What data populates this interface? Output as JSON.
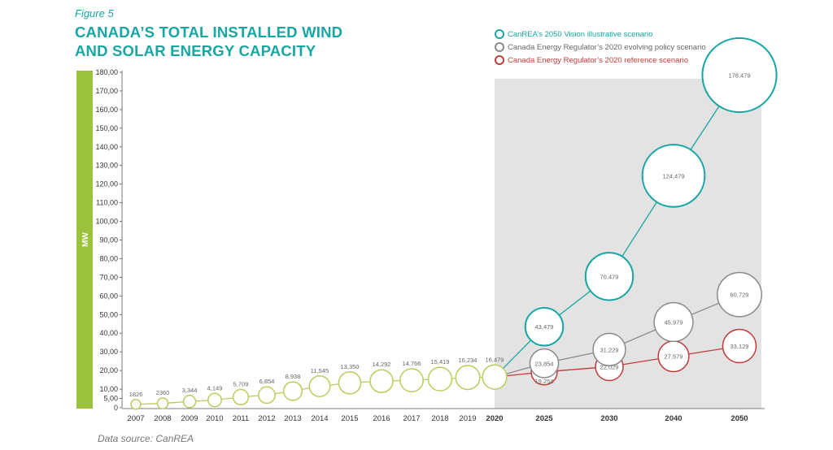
{
  "figure_label": "Figure 5",
  "title_line1": "CANADA’S TOTAL INSTALLED WIND",
  "title_line2": "AND SOLAR ENERGY CAPACITY",
  "source": "Data source: CanREA",
  "legend": [
    {
      "label": "CanREA’s 2050 Vision illustrative scenario",
      "color": "#17a6a3",
      "text_color": "#17a6a3"
    },
    {
      "label": "Canada Energy Regulator’s 2020 evolving policy scenario",
      "color": "#8a8a8a",
      "text_color": "#666666"
    },
    {
      "label": "Canada Energy Regulator’s 2020 reference scenario",
      "color": "#c23a3a",
      "text_color": "#c23a3a"
    }
  ],
  "colors": {
    "historical": "#b5cf5b",
    "vision": "#17a6a3",
    "evolving": "#8a8a8a",
    "reference": "#c23a3a",
    "axis_bar": "#9cc33b",
    "forecast_bg": "#e3e3e3"
  },
  "chart_data": {
    "type": "scatter",
    "ylabel": "MW",
    "ylim": [
      0,
      180
    ],
    "yticks": [
      "0",
      "5,00",
      "10,00",
      "20,00",
      "30,00",
      "40,00",
      "50,00",
      "60,00",
      "70,00",
      "80,00",
      "90,00",
      "100,00",
      "110,00",
      "120,00",
      "130,00",
      "140,00",
      "150,00",
      "160,00",
      "170,00",
      "180,00"
    ],
    "categories": [
      "2007",
      "2008",
      "2009",
      "2010",
      "2011",
      "2012",
      "2013",
      "2014",
      "2015",
      "2016",
      "2017",
      "2018",
      "2019",
      "2020",
      "2025",
      "2030",
      "2040",
      "2050"
    ],
    "bold_categories": [
      "2020",
      "2025",
      "2030",
      "2040",
      "2050"
    ],
    "forecast_start": "2020",
    "historical": {
      "x": [
        "2007",
        "2008",
        "2009",
        "2010",
        "2011",
        "2012",
        "2013",
        "2014",
        "2015",
        "2016",
        "2017",
        "2018",
        "2019",
        "2020"
      ],
      "values": [
        1.826,
        2.36,
        3.344,
        4.149,
        5.709,
        6.854,
        8.938,
        11.545,
        13.35,
        14.292,
        14.766,
        15.419,
        16.234,
        16.479
      ],
      "labels": [
        "1826",
        "2360",
        "3,344",
        "4,149",
        "5,709",
        "6,854",
        "8,938",
        "11,545",
        "13,350",
        "14,292",
        "14,766",
        "15,419",
        "16,234",
        "16,479"
      ]
    },
    "series": [
      {
        "name": "CanREA’s 2050 Vision illustrative scenario",
        "key": "vision",
        "x": [
          "2020",
          "2025",
          "2030",
          "2040",
          "2050"
        ],
        "values": [
          16.479,
          43.479,
          70.479,
          124.479,
          178.479
        ],
        "labels": [
          "",
          "43,479",
          "70,479",
          "124,479",
          "178,479"
        ]
      },
      {
        "name": "Canada Energy Regulator’s 2020 evolving policy scenario",
        "key": "evolving",
        "x": [
          "2020",
          "2025",
          "2030",
          "2040",
          "2050"
        ],
        "values": [
          16.479,
          23.854,
          31.229,
          45.979,
          60.729
        ],
        "labels": [
          "",
          "23,854",
          "31,229",
          "45,979",
          "60,729"
        ]
      },
      {
        "name": "Canada Energy Regulator’s 2020 reference scenario",
        "key": "reference",
        "x": [
          "2020",
          "2025",
          "2030",
          "2040",
          "2050"
        ],
        "values": [
          16.479,
          19.254,
          22.029,
          27.579,
          33.129
        ],
        "labels": [
          "",
          "19,254",
          "22,029",
          "27,579",
          "33,129"
        ]
      }
    ],
    "grid": false
  }
}
